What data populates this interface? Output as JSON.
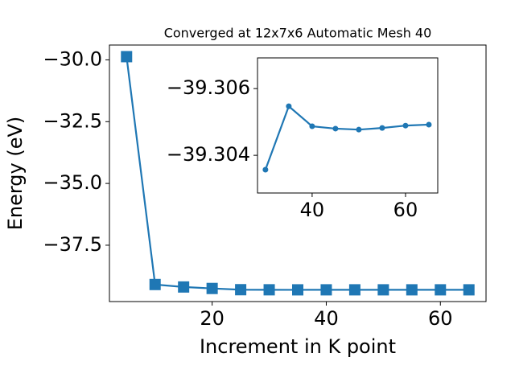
{
  "chart_data": [
    {
      "type": "line",
      "title": "Converged at 12x7x6 Automatic Mesh 40",
      "xlabel": "Increment in K point",
      "ylabel": "Energy (eV)",
      "x": [
        5,
        10,
        15,
        20,
        25,
        30,
        35,
        40,
        45,
        50,
        55,
        60,
        65
      ],
      "series": [
        {
          "name": "Energy",
          "color": "#1f77b4",
          "marker": "square",
          "values": [
            -29.87,
            -39.09,
            -39.19,
            -39.25,
            -39.3,
            -39.30357,
            -39.30547,
            -39.30487,
            -39.3048,
            -39.30477,
            -39.30482,
            -39.30489,
            -39.30492
          ]
        }
      ],
      "xlim": [
        2,
        68
      ],
      "ylim": [
        -39.78,
        -29.4
      ],
      "xticks": [
        20,
        40,
        60
      ],
      "yticks": [
        {
          "value": -30.0,
          "label": "−30.0"
        },
        {
          "value": -32.5,
          "label": "−32.5"
        },
        {
          "value": -35.0,
          "label": "−35.0"
        },
        {
          "value": -37.5,
          "label": "−37.5"
        }
      ]
    },
    {
      "type": "line",
      "x": [
        30,
        35,
        40,
        45,
        50,
        55,
        60,
        65
      ],
      "series": [
        {
          "name": "Energy",
          "color": "#1f77b4",
          "marker": "circle",
          "values": [
            -39.30357,
            -39.30547,
            -39.30487,
            -39.3048,
            -39.30477,
            -39.30482,
            -39.30489,
            -39.30492
          ]
        }
      ],
      "xlim": [
        28.3,
        66.9
      ],
      "ylim": [
        -39.30287,
        -39.30692
      ],
      "xticks": [
        40,
        60
      ],
      "yticks": [
        {
          "value": -39.306,
          "label": "−39.306"
        },
        {
          "value": -39.304,
          "label": "−39.304"
        }
      ]
    }
  ]
}
